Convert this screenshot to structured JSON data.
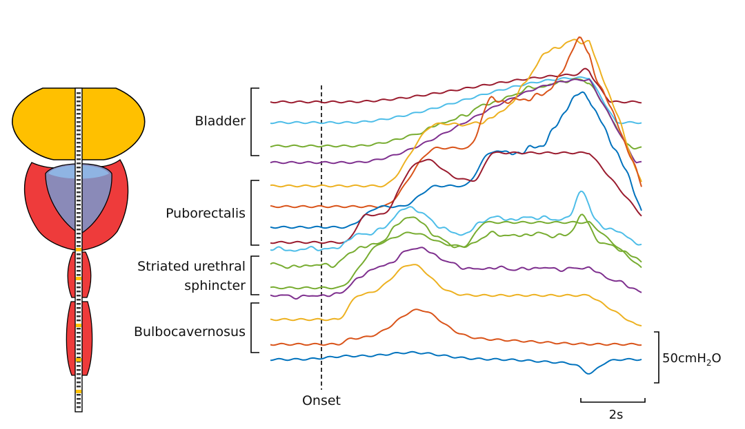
{
  "regions": [
    {
      "label_lines": [
        "Bladder"
      ]
    },
    {
      "label_lines": [
        "Puborectalis"
      ]
    },
    {
      "label_lines": [
        "Striated urethral",
        "sphincter"
      ]
    },
    {
      "label_lines": [
        "Bulbocavernosus"
      ]
    }
  ],
  "onset_label": "Onset",
  "scale_bars": {
    "pressure": {
      "value": "50",
      "unit_main": "cmH",
      "unit_sub": "2",
      "unit_end": "O"
    },
    "time": "2s"
  },
  "colors": {
    "bladder_fill": "#FFC000",
    "muscle_fill": "#EE3B3B",
    "prostate_fill": "#8A8AB8",
    "prostate_top": "#8FB8E8",
    "catheter_marker": "#FFC000",
    "trace_colors": [
      "#9A1B2E",
      "#4DBDE8",
      "#77AC30",
      "#7E2F8E",
      "#EDB120",
      "#D95319",
      "#0072BD"
    ]
  },
  "trace_count": 15
}
